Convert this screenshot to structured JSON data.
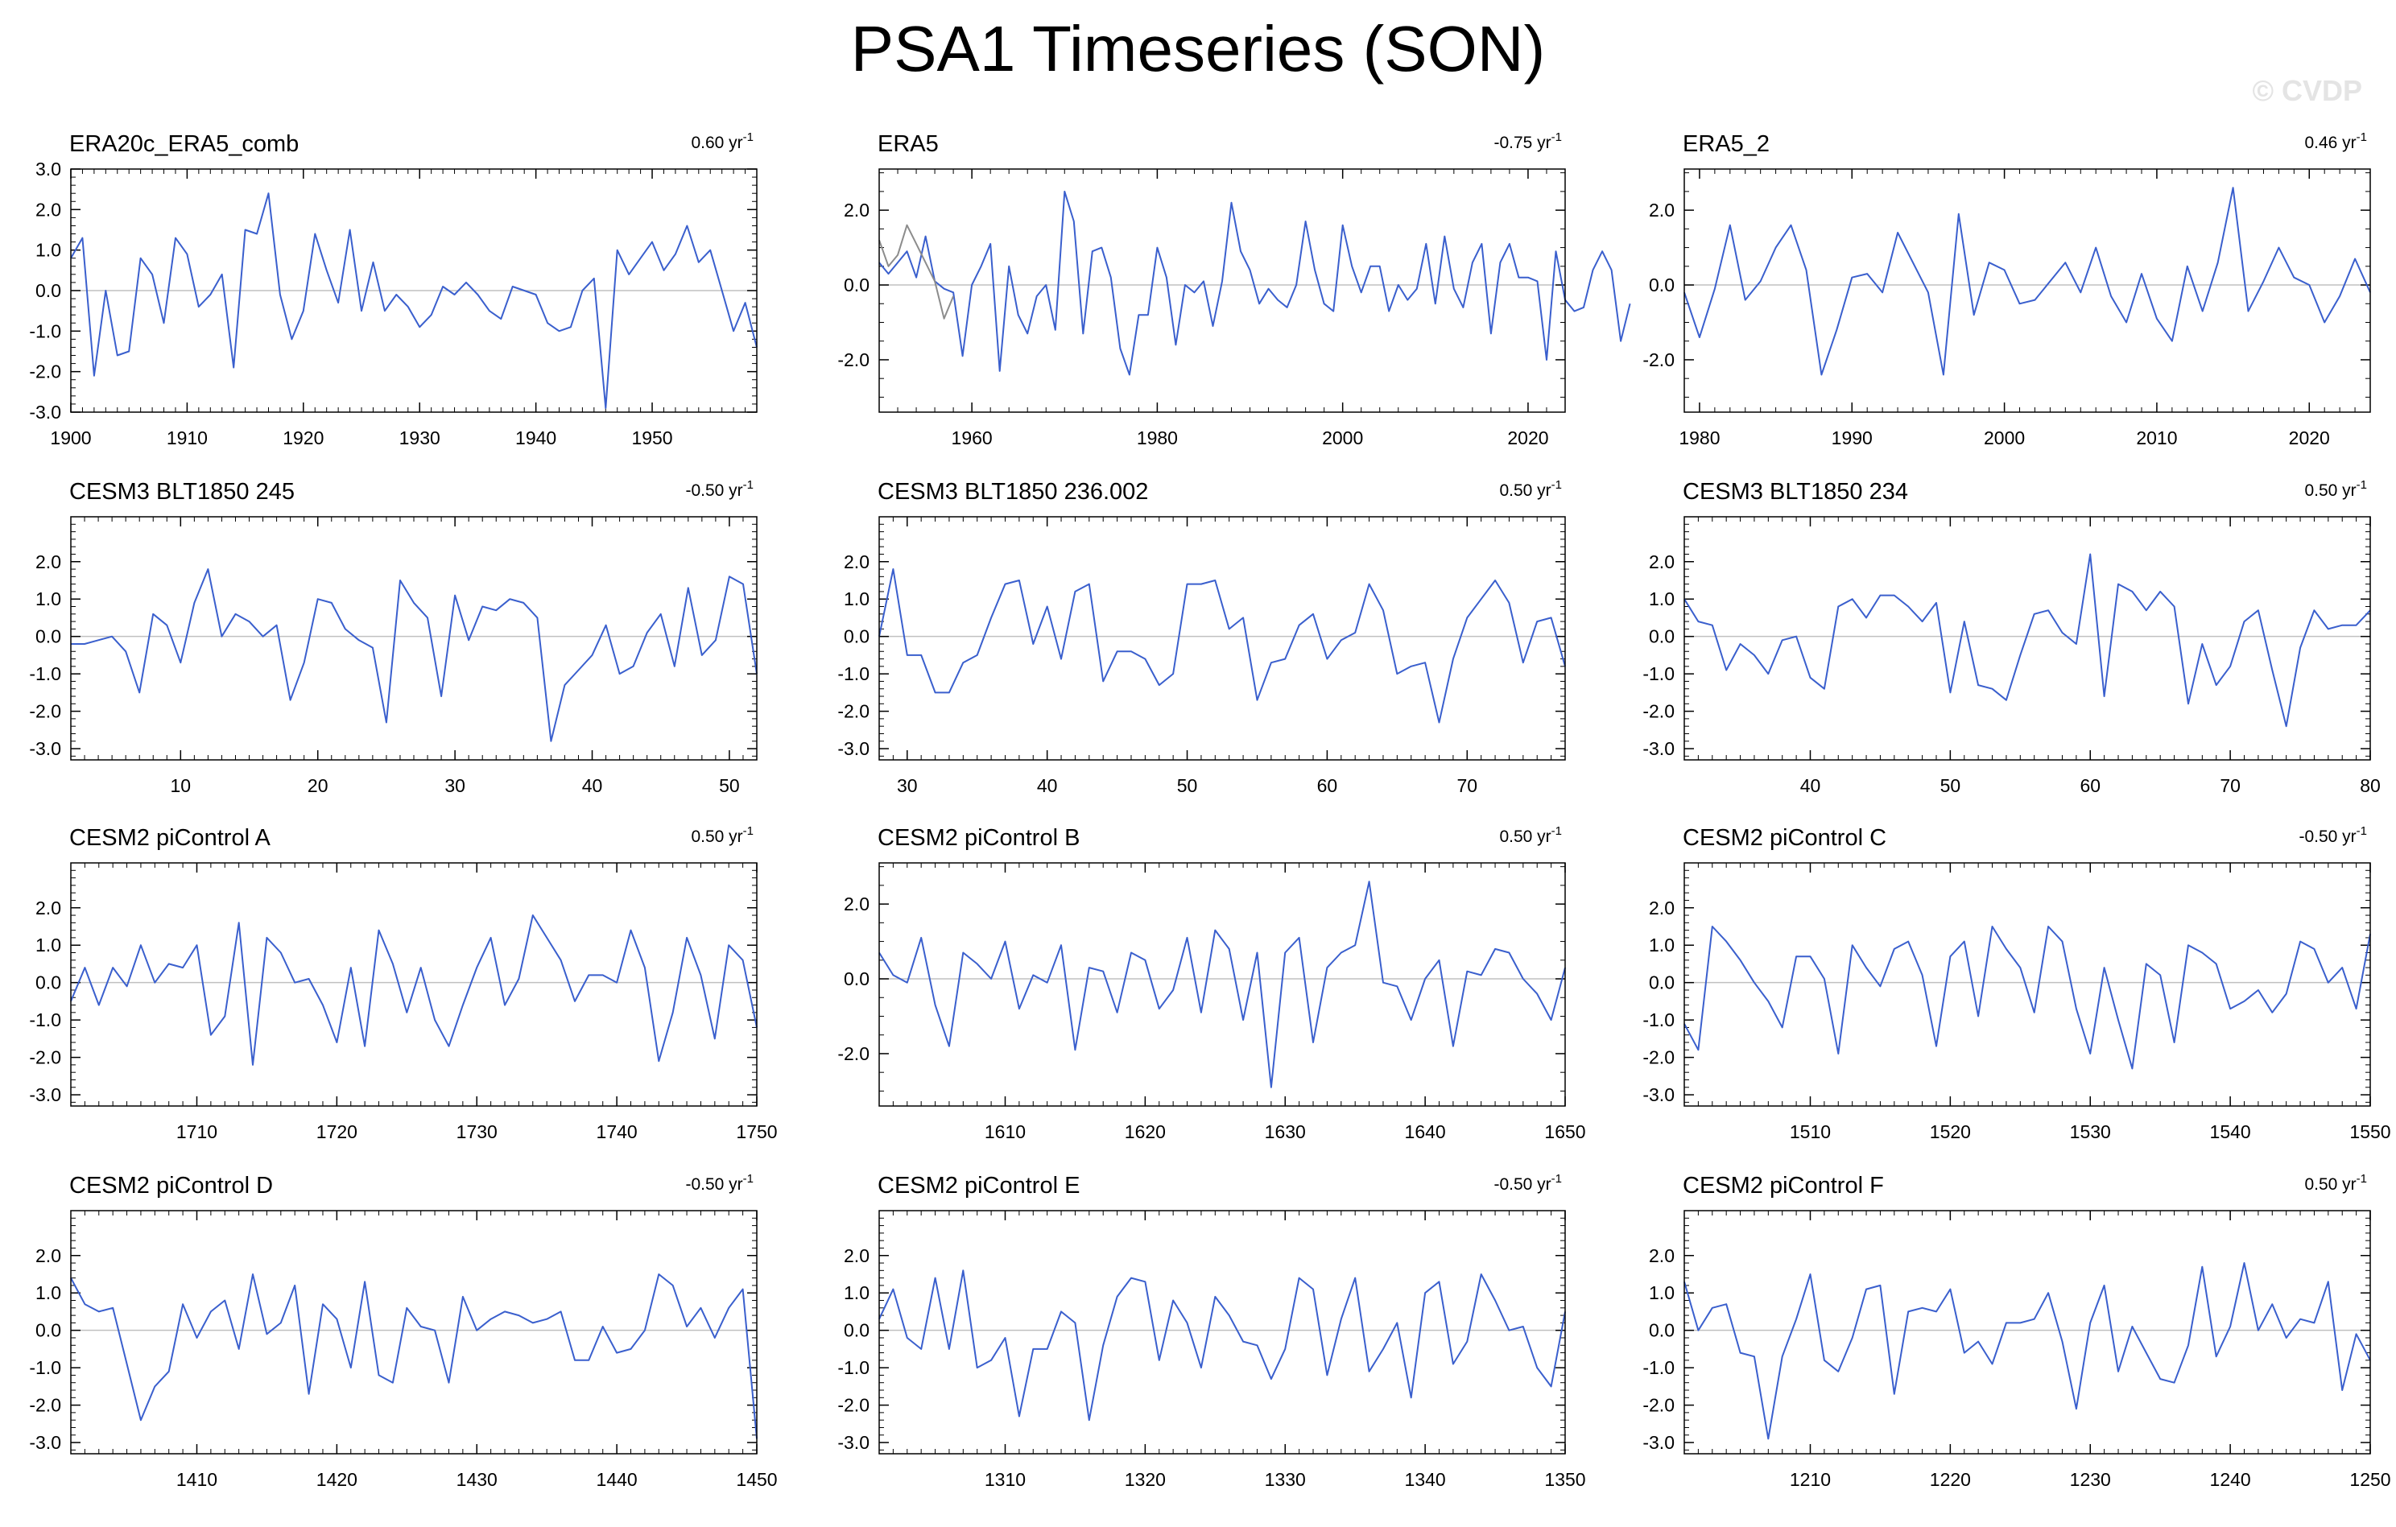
{
  "header": {
    "title": "PSA1 Timeseries (SON)",
    "watermark": "© CVDP"
  },
  "colors": {
    "line": "#3a5fcd",
    "obs_gray": "#8c8c8c",
    "zero": "#c0c0c0",
    "frame": "#000000"
  },
  "chart_data": [
    {
      "type": "line",
      "title": "ERA20c_ERA5_comb",
      "trend": "0.60",
      "trend_unit": "yr",
      "trend_exp": "-1",
      "ylim": [
        -3.0,
        3.0
      ],
      "yticks": [
        "3.0",
        "2.0",
        "1.0",
        "0.0",
        "-1.0",
        "-2.0",
        "-3.0"
      ],
      "xlim": [
        1900,
        1959
      ],
      "xticks": [
        "1900",
        "1910",
        "1920",
        "1930",
        "1940",
        "1950"
      ],
      "x_start": 1900,
      "series": [
        {
          "name": "ERA20c_ERA5_comb",
          "values": [
            0.8,
            1.3,
            -2.1,
            0.0,
            -1.6,
            -1.5,
            0.8,
            0.4,
            -0.8,
            1.3,
            0.9,
            -0.4,
            -0.1,
            0.4,
            -1.9,
            1.5,
            1.4,
            2.4,
            -0.1,
            -1.2,
            -0.5,
            1.4,
            0.5,
            -0.3,
            1.5,
            -0.5,
            0.7,
            -0.5,
            -0.1,
            -0.4,
            -0.9,
            -0.6,
            0.1,
            -0.1,
            0.2,
            -0.1,
            -0.5,
            -0.7,
            0.1,
            0.0,
            -0.1,
            -0.8,
            -1.0,
            -0.9,
            0.0,
            0.3,
            -2.9,
            1.0,
            0.4,
            0.8,
            1.2,
            0.5,
            0.9,
            1.6,
            0.7,
            1.0,
            0.0,
            -1.0,
            -0.3,
            -1.4
          ]
        }
      ]
    },
    {
      "type": "line",
      "title": "ERA5",
      "trend": "-0.75",
      "trend_unit": "yr",
      "trend_exp": "-1",
      "ylim": [
        -3.4,
        3.1
      ],
      "yticks": [
        "2.0",
        "0.0",
        "-2.0"
      ],
      "xlim": [
        1950,
        2024
      ],
      "xticks": [
        "1960",
        "1980",
        "2000",
        "2020"
      ],
      "x_start": 1950,
      "series": [
        {
          "name": "ERA5",
          "values": [
            0.6,
            0.3,
            0.6,
            0.9,
            0.2,
            1.3,
            0.1,
            -0.1,
            -0.2,
            -1.9,
            0.0,
            0.5,
            1.1,
            -2.3,
            0.5,
            -0.8,
            -1.3,
            -0.3,
            0.0,
            -1.2,
            2.5,
            1.7,
            -1.3,
            0.9,
            1.0,
            0.2,
            -1.7,
            -2.4,
            -0.8,
            -0.8,
            1.0,
            0.2,
            -1.6,
            0.0,
            -0.2,
            0.1,
            -1.1,
            0.1,
            2.2,
            0.9,
            0.4,
            -0.5,
            -0.1,
            -0.4,
            -0.6,
            0.0,
            1.7,
            0.4,
            -0.5,
            -0.7,
            1.6,
            0.5,
            -0.2,
            0.5,
            0.5,
            -0.7,
            0.0,
            -0.4,
            -0.1,
            1.1,
            -0.5,
            1.3,
            -0.1,
            -0.6,
            0.6,
            1.1,
            -1.3,
            0.6,
            1.1,
            0.2,
            0.2,
            0.1,
            -2.0,
            0.9,
            -0.4,
            -0.7,
            -0.6,
            0.4,
            0.9,
            0.4,
            -1.5,
            -0.5
          ]
        },
        {
          "name": "ERA5 overlap",
          "values": [
            1.2,
            0.5,
            0.8,
            1.6,
            1.1,
            0.6,
            0.1,
            -0.9,
            -0.3
          ]
        }
      ]
    },
    {
      "type": "line",
      "title": "ERA5_2",
      "trend": "0.46",
      "trend_unit": "yr",
      "trend_exp": "-1",
      "ylim": [
        -3.4,
        3.1
      ],
      "yticks": [
        "2.0",
        "0.0",
        "-2.0"
      ],
      "xlim": [
        1979,
        2024
      ],
      "xticks": [
        "1980",
        "1990",
        "2000",
        "2010",
        "2020"
      ],
      "x_start": 1979,
      "series": [
        {
          "name": "ERA5_2",
          "values": [
            -0.2,
            -1.4,
            -0.1,
            1.6,
            -0.4,
            0.1,
            1.0,
            1.6,
            0.4,
            -2.4,
            -1.2,
            0.2,
            0.3,
            -0.2,
            1.4,
            0.6,
            -0.2,
            -2.4,
            1.9,
            -0.8,
            0.6,
            0.4,
            -0.5,
            -0.4,
            0.1,
            0.6,
            -0.2,
            1.0,
            -0.3,
            -1.0,
            0.3,
            -0.9,
            -1.5,
            0.5,
            -0.7,
            0.6,
            2.6,
            -0.7,
            0.1,
            1.0,
            0.2,
            0.0,
            -1.0,
            -0.3,
            0.7,
            -0.2
          ]
        }
      ]
    },
    {
      "type": "line",
      "title": "CESM3 BLT1850 245",
      "trend": "-0.50",
      "trend_unit": "yr",
      "trend_exp": "-1",
      "ylim": [
        -3.3,
        3.2
      ],
      "yticks": [
        "2.0",
        "1.0",
        "0.0",
        "-1.0",
        "-2.0",
        "-3.0"
      ],
      "xlim": [
        2,
        52
      ],
      "xticks": [
        "10",
        "20",
        "30",
        "40",
        "50"
      ],
      "x_start": 2,
      "series": [
        {
          "name": "CESM3 BLT1850 245",
          "values": [
            -0.2,
            -0.2,
            -0.1,
            0.0,
            -0.4,
            -1.5,
            0.6,
            0.3,
            -0.7,
            0.9,
            1.8,
            0.0,
            0.6,
            0.4,
            0.0,
            0.3,
            -1.7,
            -0.7,
            1.0,
            0.9,
            0.2,
            -0.1,
            -0.3,
            -2.3,
            1.5,
            0.9,
            0.5,
            -1.6,
            1.1,
            -0.1,
            0.8,
            0.7,
            1.0,
            0.9,
            0.5,
            -2.8,
            -1.3,
            -0.9,
            -0.5,
            0.3,
            -1.0,
            -0.8,
            0.1,
            0.6,
            -0.8,
            1.3,
            -0.5,
            -0.1,
            1.6,
            1.4,
            -1.0
          ]
        }
      ]
    },
    {
      "type": "line",
      "title": "CESM3 BLT1850 236.002",
      "trend": "0.50",
      "trend_unit": "yr",
      "trend_exp": "-1",
      "ylim": [
        -3.3,
        3.2
      ],
      "yticks": [
        "2.0",
        "1.0",
        "0.0",
        "-1.0",
        "-2.0",
        "-3.0"
      ],
      "xlim": [
        28,
        77
      ],
      "xticks": [
        "30",
        "40",
        "50",
        "60",
        "70"
      ],
      "x_start": 28,
      "series": [
        {
          "name": "CESM3 BLT1850 236.002",
          "values": [
            0.0,
            1.8,
            -0.5,
            -0.5,
            -1.5,
            -1.5,
            -0.7,
            -0.5,
            0.5,
            1.4,
            1.5,
            -0.2,
            0.8,
            -0.6,
            1.2,
            1.4,
            -1.2,
            -0.4,
            -0.4,
            -0.6,
            -1.3,
            -1.0,
            1.4,
            1.4,
            1.5,
            0.2,
            0.5,
            -1.7,
            -0.7,
            -0.6,
            0.3,
            0.6,
            -0.6,
            -0.1,
            0.1,
            1.4,
            0.7,
            -1.0,
            -0.8,
            -0.7,
            -2.3,
            -0.6,
            0.5,
            1.0,
            1.5,
            0.9,
            -0.7,
            0.4,
            0.5,
            -0.8
          ]
        }
      ]
    },
    {
      "type": "line",
      "title": "CESM3 BLT1850 234",
      "trend": "0.50",
      "trend_unit": "yr",
      "trend_exp": "-1",
      "ylim": [
        -3.3,
        3.2
      ],
      "yticks": [
        "2.0",
        "1.0",
        "0.0",
        "-1.0",
        "-2.0",
        "-3.0"
      ],
      "xlim": [
        31,
        80
      ],
      "xticks": [
        "40",
        "50",
        "60",
        "70",
        "80"
      ],
      "x_start": 31,
      "series": [
        {
          "name": "CESM3 BLT1850 234",
          "values": [
            1.0,
            0.4,
            0.3,
            -0.9,
            -0.2,
            -0.5,
            -1.0,
            -0.1,
            0.0,
            -1.1,
            -1.4,
            0.8,
            1.0,
            0.5,
            1.1,
            1.1,
            0.8,
            0.4,
            0.9,
            -1.5,
            0.4,
            -1.3,
            -1.4,
            -1.7,
            -0.5,
            0.6,
            0.7,
            0.1,
            -0.2,
            2.2,
            -1.6,
            1.4,
            1.2,
            0.7,
            1.2,
            0.8,
            -1.8,
            -0.2,
            -1.3,
            -0.8,
            0.4,
            0.7,
            -0.9,
            -2.4,
            -0.3,
            0.7,
            0.2,
            0.3,
            0.3,
            0.7
          ]
        }
      ]
    },
    {
      "type": "line",
      "title": "CESM2 piControl A",
      "trend": "0.50",
      "trend_unit": "yr",
      "trend_exp": "-1",
      "ylim": [
        -3.3,
        3.2
      ],
      "yticks": [
        "2.0",
        "1.0",
        "0.0",
        "-1.0",
        "-2.0",
        "-3.0"
      ],
      "xlim": [
        1701,
        1750
      ],
      "xticks": [
        "1710",
        "1720",
        "1730",
        "1740",
        "1750"
      ],
      "x_start": 1701,
      "series": [
        {
          "name": "CESM2 piControl A",
          "values": [
            -0.5,
            0.4,
            -0.6,
            0.4,
            -0.1,
            1.0,
            0.0,
            0.5,
            0.4,
            1.0,
            -1.4,
            -0.9,
            1.6,
            -2.2,
            1.2,
            0.8,
            0.0,
            0.1,
            -0.6,
            -1.6,
            0.4,
            -1.7,
            1.4,
            0.5,
            -0.8,
            0.4,
            -1.0,
            -1.7,
            -0.6,
            0.4,
            1.2,
            -0.6,
            0.1,
            1.8,
            1.2,
            0.6,
            -0.5,
            0.2,
            0.2,
            0.0,
            1.4,
            0.4,
            -2.1,
            -0.8,
            1.2,
            0.2,
            -1.5,
            1.0,
            0.6,
            -1.2
          ]
        }
      ]
    },
    {
      "type": "line",
      "title": "CESM2 piControl B",
      "trend": "0.50",
      "trend_unit": "yr",
      "trend_exp": "-1",
      "ylim": [
        -3.4,
        3.1
      ],
      "yticks": [
        "2.0",
        "0.0",
        "-2.0"
      ],
      "xlim": [
        1601,
        1650
      ],
      "xticks": [
        "1610",
        "1620",
        "1630",
        "1640",
        "1650"
      ],
      "x_start": 1601,
      "series": [
        {
          "name": "CESM2 piControl B",
          "values": [
            0.7,
            0.1,
            -0.1,
            1.1,
            -0.7,
            -1.8,
            0.7,
            0.4,
            0.0,
            1.0,
            -0.8,
            0.1,
            -0.1,
            0.9,
            -1.9,
            0.3,
            0.2,
            -0.9,
            0.7,
            0.5,
            -0.8,
            -0.3,
            1.1,
            -0.9,
            1.3,
            0.8,
            -1.1,
            0.7,
            -2.9,
            0.7,
            1.1,
            -1.7,
            0.3,
            0.7,
            0.9,
            2.6,
            -0.1,
            -0.2,
            -1.1,
            0.0,
            0.5,
            -1.8,
            0.2,
            0.1,
            0.8,
            0.7,
            0.0,
            -0.4,
            -1.1,
            0.3
          ]
        }
      ]
    },
    {
      "type": "line",
      "title": "CESM2 piControl C",
      "trend": "-0.50",
      "trend_unit": "yr",
      "trend_exp": "-1",
      "ylim": [
        -3.3,
        3.2
      ],
      "yticks": [
        "2.0",
        "1.0",
        "0.0",
        "-1.0",
        "-2.0",
        "-3.0"
      ],
      "xlim": [
        1501,
        1550
      ],
      "xticks": [
        "1510",
        "1520",
        "1530",
        "1540",
        "1550"
      ],
      "x_start": 1501,
      "series": [
        {
          "name": "CESM2 piControl C",
          "values": [
            -1.1,
            -1.8,
            1.5,
            1.1,
            0.6,
            0.0,
            -0.5,
            -1.2,
            0.7,
            0.7,
            0.1,
            -1.9,
            1.0,
            0.4,
            -0.1,
            0.9,
            1.1,
            0.2,
            -1.7,
            0.7,
            1.1,
            -0.9,
            1.5,
            0.9,
            0.4,
            -0.8,
            1.5,
            1.1,
            -0.7,
            -1.9,
            0.4,
            -1.0,
            -2.3,
            0.5,
            0.2,
            -1.6,
            1.0,
            0.8,
            0.5,
            -0.7,
            -0.5,
            -0.2,
            -0.8,
            -0.3,
            1.1,
            0.9,
            0.0,
            0.4,
            -0.7,
            1.3
          ]
        }
      ]
    },
    {
      "type": "line",
      "title": "CESM2 piControl D",
      "trend": "-0.50",
      "trend_unit": "yr",
      "trend_exp": "-1",
      "ylim": [
        -3.3,
        3.2
      ],
      "yticks": [
        "2.0",
        "1.0",
        "0.0",
        "-1.0",
        "-2.0",
        "-3.0"
      ],
      "xlim": [
        1401,
        1450
      ],
      "xticks": [
        "1410",
        "1420",
        "1430",
        "1440",
        "1450"
      ],
      "x_start": 1401,
      "series": [
        {
          "name": "CESM2 piControl D",
          "values": [
            1.4,
            0.7,
            0.5,
            0.6,
            -0.9,
            -2.4,
            -1.5,
            -1.1,
            0.7,
            -0.2,
            0.5,
            0.8,
            -0.5,
            1.5,
            -0.1,
            0.2,
            1.2,
            -1.7,
            0.7,
            0.3,
            -1.0,
            1.3,
            -1.2,
            -1.4,
            0.6,
            0.1,
            0.0,
            -1.4,
            0.9,
            0.0,
            0.3,
            0.5,
            0.4,
            0.2,
            0.3,
            0.5,
            -0.8,
            -0.8,
            0.1,
            -0.6,
            -0.5,
            0.0,
            1.5,
            1.2,
            0.1,
            0.6,
            -0.2,
            0.6,
            1.1,
            -2.9
          ]
        }
      ]
    },
    {
      "type": "line",
      "title": "CESM2 piControl E",
      "trend": "-0.50",
      "trend_unit": "yr",
      "trend_exp": "-1",
      "ylim": [
        -3.3,
        3.2
      ],
      "yticks": [
        "2.0",
        "1.0",
        "0.0",
        "-1.0",
        "-2.0",
        "-3.0"
      ],
      "xlim": [
        1301,
        1350
      ],
      "xticks": [
        "1310",
        "1320",
        "1330",
        "1340",
        "1350"
      ],
      "x_start": 1301,
      "series": [
        {
          "name": "CESM2 piControl E",
          "values": [
            0.3,
            1.1,
            -0.2,
            -0.5,
            1.4,
            -0.5,
            1.6,
            -1.0,
            -0.8,
            -0.2,
            -2.3,
            -0.5,
            -0.5,
            0.5,
            0.2,
            -2.4,
            -0.4,
            0.9,
            1.4,
            1.3,
            -0.8,
            0.8,
            0.2,
            -1.0,
            0.9,
            0.4,
            -0.3,
            -0.4,
            -1.3,
            -0.5,
            1.4,
            1.1,
            -1.2,
            0.3,
            1.4,
            -1.1,
            -0.5,
            0.2,
            -1.8,
            1.0,
            1.3,
            -0.9,
            -0.3,
            1.5,
            0.8,
            0.0,
            0.1,
            -1.0,
            -1.5,
            0.5
          ]
        }
      ]
    },
    {
      "type": "line",
      "title": "CESM2 piControl F",
      "trend": "0.50",
      "trend_unit": "yr",
      "trend_exp": "-1",
      "ylim": [
        -3.3,
        3.2
      ],
      "yticks": [
        "2.0",
        "1.0",
        "0.0",
        "-1.0",
        "-2.0",
        "-3.0"
      ],
      "xlim": [
        1201,
        1250
      ],
      "xticks": [
        "1210",
        "1220",
        "1230",
        "1240",
        "1250"
      ],
      "x_start": 1201,
      "series": [
        {
          "name": "CESM2 piControl F",
          "values": [
            1.3,
            0.0,
            0.6,
            0.7,
            -0.6,
            -0.7,
            -2.9,
            -0.7,
            0.3,
            1.5,
            -0.8,
            -1.1,
            -0.2,
            1.1,
            1.2,
            -1.7,
            0.5,
            0.6,
            0.5,
            1.1,
            -0.6,
            -0.3,
            -0.9,
            0.2,
            0.2,
            0.3,
            1.0,
            -0.3,
            -2.1,
            0.2,
            1.2,
            -1.1,
            0.1,
            -0.6,
            -1.3,
            -1.4,
            -0.4,
            1.7,
            -0.7,
            0.1,
            1.8,
            0.0,
            0.7,
            -0.2,
            0.3,
            0.2,
            1.3,
            -1.6,
            -0.1,
            -0.8
          ]
        }
      ]
    }
  ]
}
